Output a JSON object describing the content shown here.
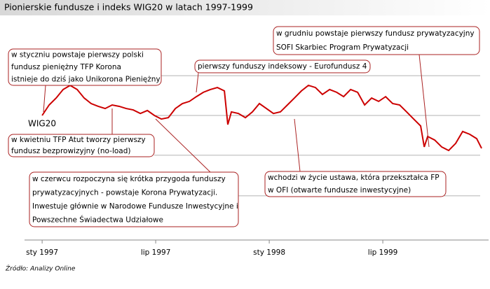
{
  "chart_data": {
    "type": "line",
    "title": "Pionierskie fundusze i indeks WIG20 w latach 1997-1999",
    "source": "Źródło: Analizy Online",
    "x": [
      0,
      0.37,
      0.74,
      1.11,
      1.48,
      1.85,
      2.22,
      2.59,
      2.96,
      3.33,
      3.7,
      4.07,
      4.44,
      4.81,
      5.19,
      5.56,
      5.93,
      6.3,
      6.67,
      7.04,
      7.41,
      7.78,
      8.15,
      8.52,
      8.89,
      9.26,
      9.63,
      9.81,
      10.0,
      10.37,
      10.74,
      11.11,
      11.48,
      11.85,
      12.22,
      12.59,
      12.96,
      13.33,
      13.7,
      14.07,
      14.44,
      14.81,
      15.19,
      15.56,
      15.93,
      16.3,
      16.67,
      17.04,
      17.41,
      17.78,
      18.15,
      18.52,
      18.89,
      19.26,
      19.63,
      20.0,
      20.19,
      20.37,
      20.74,
      21.11,
      21.48,
      21.85,
      22.22,
      22.59,
      22.96,
      23.22
    ],
    "series": [
      {
        "name": "WIG20",
        "color": "#cc0000",
        "values": [
          62.9,
          68.2,
          71.7,
          76.0,
          78.1,
          76.0,
          71.7,
          68.9,
          67.5,
          66.4,
          68.2,
          67.5,
          66.4,
          65.7,
          63.9,
          65.4,
          62.9,
          61.1,
          61.8,
          66.4,
          68.9,
          70.0,
          72.4,
          74.6,
          76.0,
          77.0,
          75.3,
          58.3,
          64.7,
          63.9,
          61.8,
          64.7,
          68.9,
          66.4,
          63.9,
          64.7,
          68.2,
          71.7,
          75.3,
          78.1,
          77.0,
          73.5,
          76.0,
          74.6,
          72.4,
          76.0,
          74.6,
          68.2,
          71.7,
          70.0,
          72.4,
          68.9,
          68.2,
          64.7,
          61.1,
          57.6,
          47.0,
          52.3,
          50.5,
          47.0,
          45.2,
          48.8,
          54.8,
          53.4,
          51.2,
          46.3
        ]
      }
    ],
    "xlim": [
      -0.93,
      23.59
    ],
    "ylim": [
      0,
      100
    ],
    "xticks": [
      {
        "value": 0,
        "label": "sty 1997"
      },
      {
        "value": 6,
        "label": "lip 1997"
      },
      {
        "value": 12,
        "label": "sty 1998"
      },
      {
        "value": 18,
        "label": "lip 1999"
      }
    ],
    "gridlines": [
      83.0,
      62.9,
      42.8,
      22.3
    ],
    "annotations": [
      {
        "lines": [
          "w styczniu powstaje pierwszy polski",
          "fundusz pieniężny TFP Korona",
          "istnieje do dziś jako Unikorona Pieniężny"
        ]
      },
      {
        "lines": [
          "pierwszy funduszy indeksowy - Eurofundusz 4"
        ]
      },
      {
        "lines": [
          "w grudniu powstaje pierwszy fundusz prywatyzacyjny",
          "SOFI Skarbiec Program Prywatyzacji"
        ]
      },
      {
        "lines": [
          "w kwietniu TFP Atut tworzy pierwszy",
          "fundusz bezprowizyjny (no-load)"
        ]
      },
      {
        "lines": [
          " w czerwcu rozpoczyna się krótka przygoda funduszy",
          "prywatyzacyjnych - powstaje Korona Prywatyzacji.",
          "Inwestuje głównie w Narodowe Fundusze Inwestycyjne i",
          "Powszechne Świadectwa Udziałowe"
        ]
      },
      {
        "lines": [
          "wchodzi w życie ustawa, która przekształca FP",
          "w OFI (otwarte fundusze inwestycyjne)"
        ]
      }
    ]
  }
}
